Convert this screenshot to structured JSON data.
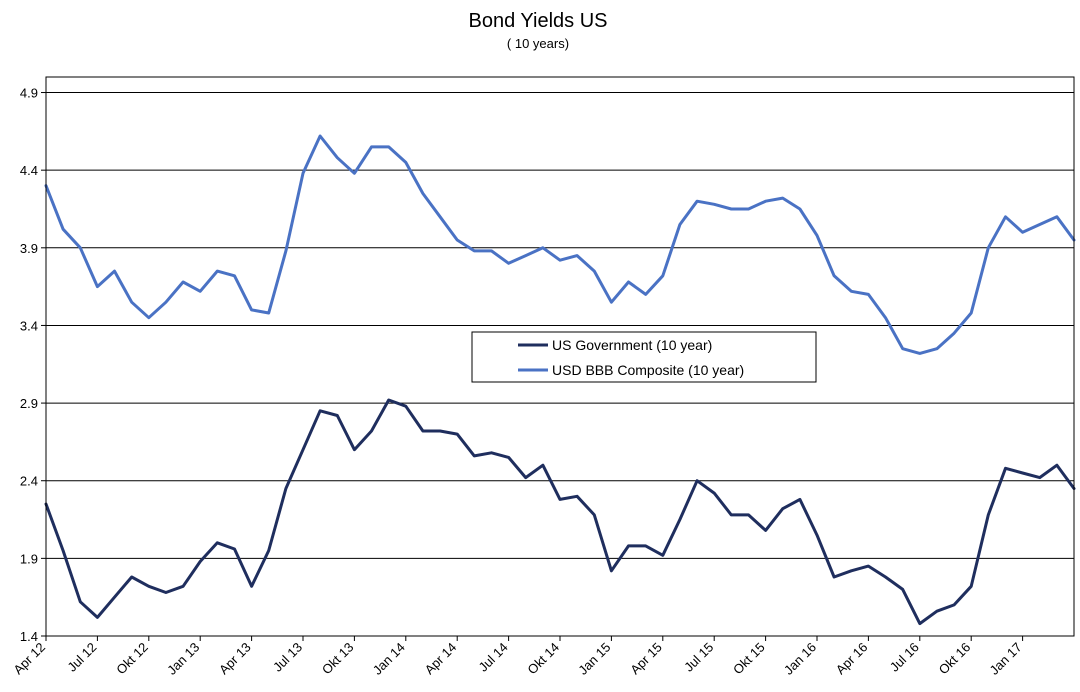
{
  "chart_data": {
    "type": "line",
    "title": "Bond Yields US",
    "subtitle": "( 10 years)",
    "xlabel": "",
    "ylabel": "",
    "ylim": [
      1.4,
      5.0
    ],
    "yticks": [
      1.4,
      1.9,
      2.4,
      2.9,
      3.4,
      3.9,
      4.4,
      4.9
    ],
    "grid": "horizontal",
    "legend_position": "center",
    "x_tick_labels": [
      "Apr 12",
      "Jul 12",
      "Okt 12",
      "Jan 13",
      "Apr 13",
      "Jul 13",
      "Okt 13",
      "Jan 14",
      "Apr 14",
      "Jul 14",
      "Okt 14",
      "Jan 15",
      "Apr 15",
      "Jul 15",
      "Okt 15",
      "Jan 16",
      "Apr 16",
      "Jul 16",
      "Okt 16",
      "Jan 17"
    ],
    "x": [
      "2012-04",
      "2012-05",
      "2012-06",
      "2012-07",
      "2012-08",
      "2012-09",
      "2012-10",
      "2012-11",
      "2012-12",
      "2013-01",
      "2013-02",
      "2013-03",
      "2013-04",
      "2013-05",
      "2013-06",
      "2013-07",
      "2013-08",
      "2013-09",
      "2013-10",
      "2013-11",
      "2013-12",
      "2014-01",
      "2014-02",
      "2014-03",
      "2014-04",
      "2014-05",
      "2014-06",
      "2014-07",
      "2014-08",
      "2014-09",
      "2014-10",
      "2014-11",
      "2014-12",
      "2015-01",
      "2015-02",
      "2015-03",
      "2015-04",
      "2015-05",
      "2015-06",
      "2015-07",
      "2015-08",
      "2015-09",
      "2015-10",
      "2015-11",
      "2015-12",
      "2016-01",
      "2016-02",
      "2016-03",
      "2016-04",
      "2016-05",
      "2016-06",
      "2016-07",
      "2016-08",
      "2016-09",
      "2016-10",
      "2016-11",
      "2016-12",
      "2017-01",
      "2017-02",
      "2017-03",
      "2017-04"
    ],
    "series": [
      {
        "name": "US Government (10 year)",
        "color": "#1f2e5e",
        "values": [
          2.25,
          1.95,
          1.62,
          1.52,
          1.65,
          1.78,
          1.72,
          1.68,
          1.72,
          1.88,
          2.0,
          1.96,
          1.72,
          1.95,
          2.35,
          2.6,
          2.85,
          2.82,
          2.6,
          2.72,
          2.92,
          2.88,
          2.72,
          2.72,
          2.7,
          2.56,
          2.58,
          2.55,
          2.42,
          2.5,
          2.28,
          2.3,
          2.18,
          1.82,
          1.98,
          1.98,
          1.92,
          2.15,
          2.4,
          2.32,
          2.18,
          2.18,
          2.08,
          2.22,
          2.28,
          2.05,
          1.78,
          1.82,
          1.85,
          1.78,
          1.7,
          1.48,
          1.56,
          1.6,
          1.72,
          2.18,
          2.48,
          2.45,
          2.42,
          2.5,
          2.35
        ]
      },
      {
        "name": "USD BBB Composite (10 year)",
        "color": "#4a72c4",
        "values": [
          4.3,
          4.02,
          3.9,
          3.65,
          3.75,
          3.55,
          3.45,
          3.55,
          3.68,
          3.62,
          3.75,
          3.72,
          3.5,
          3.48,
          3.88,
          4.38,
          4.62,
          4.48,
          4.38,
          4.55,
          4.55,
          4.45,
          4.25,
          4.1,
          3.95,
          3.88,
          3.88,
          3.8,
          3.85,
          3.9,
          3.82,
          3.85,
          3.75,
          3.55,
          3.68,
          3.6,
          3.72,
          4.05,
          4.2,
          4.18,
          4.15,
          4.15,
          4.2,
          4.22,
          4.15,
          3.98,
          3.72,
          3.62,
          3.6,
          3.45,
          3.25,
          3.22,
          3.25,
          3.35,
          3.48,
          3.9,
          4.1,
          4.0,
          4.05,
          4.1,
          3.95
        ]
      }
    ]
  }
}
